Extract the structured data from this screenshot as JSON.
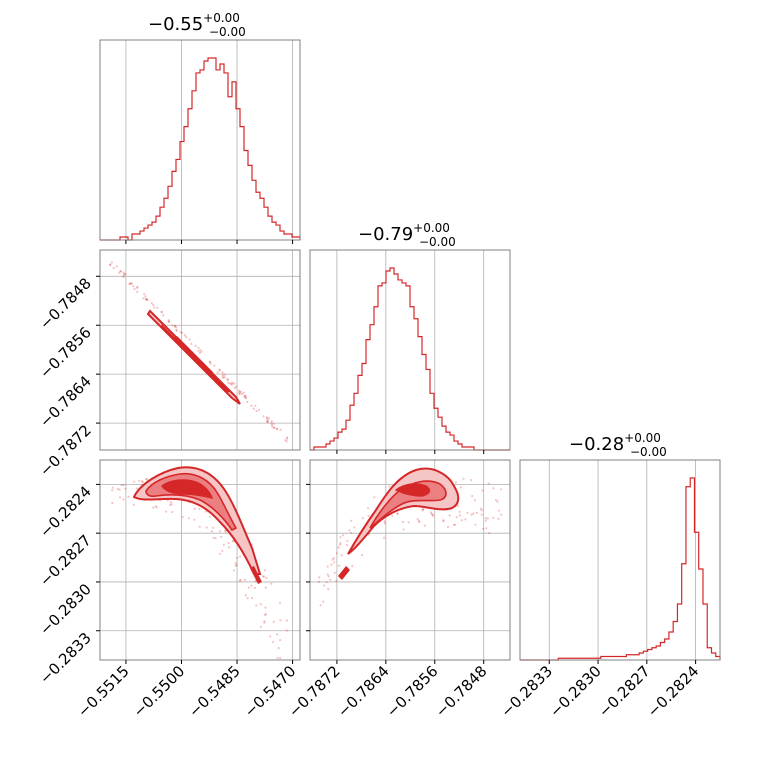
{
  "colors": {
    "accent": "#d62728",
    "grid": "#b0b0b0",
    "frame": "#808080"
  },
  "chart_data": {
    "type": "corner",
    "variables": [
      {
        "title_main": "−0.55",
        "title_sup": "+0.00",
        "title_sub": "−0.00",
        "range": [
          -0.5522,
          -0.5468
        ],
        "ticks": [
          -0.5515,
          -0.55,
          -0.5485,
          -0.547
        ],
        "tick_labels": [
          "−0.5515",
          "−0.5500",
          "−0.5485",
          "−0.5470"
        ],
        "hist_counts": [
          0,
          0,
          0,
          0,
          0,
          1,
          1,
          0,
          2,
          2,
          3,
          4,
          5,
          6,
          8,
          11,
          14,
          18,
          23,
          27,
          33,
          38,
          44,
          50,
          56,
          57,
          60,
          61,
          61,
          57,
          59,
          56,
          48,
          53,
          44,
          38,
          30,
          25,
          20,
          16,
          14,
          11,
          8,
          6,
          5,
          3,
          2,
          2,
          1,
          1
        ]
      },
      {
        "title_main": "−0.79",
        "title_sup": "+0.00",
        "title_sub": "−0.00",
        "range": [
          -0.78764,
          -0.78437
        ],
        "ticks": [
          -0.7872,
          -0.7864,
          -0.7856,
          -0.7848
        ],
        "tick_labels": [
          "−0.7872",
          "−0.7864",
          "−0.7856",
          "−0.7848"
        ],
        "hist_counts": [
          0,
          1,
          1,
          1,
          2,
          3,
          4,
          6,
          7,
          10,
          15,
          19,
          25,
          29,
          37,
          42,
          48,
          55,
          56,
          60,
          61,
          59,
          57,
          56,
          55,
          48,
          44,
          38,
          32,
          27,
          19,
          14,
          11,
          8,
          6,
          5,
          3,
          2,
          1,
          1,
          1,
          0,
          0,
          0,
          0,
          0,
          0,
          0,
          0,
          0
        ]
      },
      {
        "title_main": "−0.28",
        "title_sup": "+0.00",
        "title_sub": "−0.00",
        "range": [
          -0.28348,
          -0.28225
        ],
        "ticks": [
          -0.2833,
          -0.283,
          -0.2827,
          -0.2824
        ],
        "tick_labels": [
          "−0.2833",
          "−0.2830",
          "−0.2827",
          "−0.2824"
        ],
        "hist_counts": [
          0,
          0,
          0,
          0,
          0,
          0,
          0,
          0,
          0,
          1,
          1,
          1,
          1,
          1,
          1,
          1,
          1,
          1,
          1,
          2,
          2,
          2,
          2,
          2,
          2,
          3,
          3,
          3,
          4,
          5,
          6,
          7,
          8,
          10,
          12,
          16,
          22,
          32,
          55,
          99,
          104,
          73,
          52,
          32,
          7,
          4,
          2
        ]
      }
    ]
  }
}
